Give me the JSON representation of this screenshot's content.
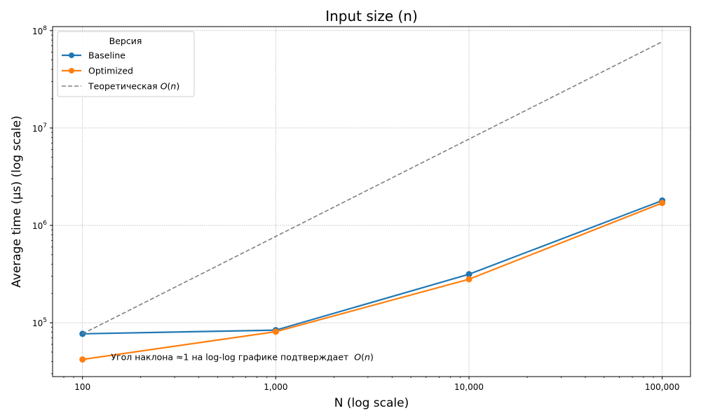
{
  "chart_data": {
    "type": "line",
    "title": "Input size (n)",
    "xlabel": "N (log scale)",
    "ylabel": "Average time (µs) (log scale)",
    "x_scale": "log",
    "y_scale": "log",
    "xlim": [
      70,
      140000
    ],
    "ylim": [
      28000,
      110000000
    ],
    "x": [
      100,
      1000,
      10000,
      100000
    ],
    "x_tick_labels": [
      "100",
      "1,000",
      "10,000",
      "100,000"
    ],
    "y_ticks": [
      100000,
      1000000,
      10000000,
      100000000
    ],
    "y_tick_labels": [
      {
        "base": "10",
        "exp": "5"
      },
      {
        "base": "10",
        "exp": "6"
      },
      {
        "base": "10",
        "exp": "7"
      },
      {
        "base": "10",
        "exp": "8"
      }
    ],
    "grid": true,
    "legend_placement": "top-left",
    "legend_title": "Версия",
    "series": [
      {
        "name": "Baseline",
        "values": [
          77000,
          84000,
          315000,
          1800000
        ],
        "color": "#1f77b4",
        "style": "solid",
        "markers": true
      },
      {
        "name": "Optimized",
        "values": [
          42000,
          81000,
          280000,
          1700000
        ],
        "color": "#ff7f0e",
        "style": "solid",
        "markers": true
      },
      {
        "name": "Теоретическая",
        "name_math": "O(n)",
        "values": [
          77000,
          770000,
          7700000,
          77000000
        ],
        "color": "#808080",
        "style": "dashed",
        "markers": false
      }
    ],
    "annotation": {
      "text": "Угол наклона ≈1 на log-log графике подтверждает",
      "math": "O(n)",
      "x": 115,
      "y": 44000
    }
  }
}
